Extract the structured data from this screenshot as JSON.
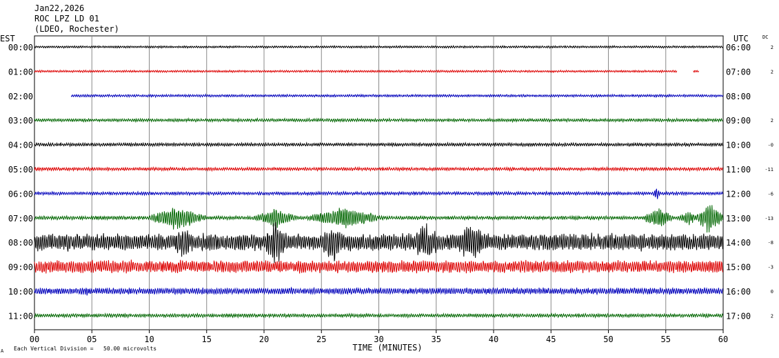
{
  "header": {
    "date": "Jan22,2026",
    "station": "ROC LPZ LD 01",
    "network": "(LDEO, Rochester)"
  },
  "chart_data": {
    "type": "line",
    "title": "Jan22,2026",
    "left_zone_label": "EST",
    "right_zone_label": "UTC",
    "dc_label": "DC",
    "xlabel": "TIME (MINUTES)",
    "xlim": [
      0,
      60
    ],
    "x_ticks": [
      "00",
      "05",
      "10",
      "15",
      "20",
      "25",
      "30",
      "35",
      "40",
      "45",
      "50",
      "55",
      "60"
    ],
    "scale_note": "Each Vertical Division =   50.00 microvolts",
    "grid": true,
    "trace_colors": [
      "#000000",
      "#dd0000",
      "#0000bb",
      "#006600"
    ],
    "rows": [
      {
        "est": "00:00",
        "utc": "06:00",
        "dc": "2",
        "color": "#000000",
        "amplitude": 1.5,
        "start_min": 0,
        "gaps": [],
        "events": []
      },
      {
        "est": "01:00",
        "utc": "07:00",
        "dc": "2",
        "color": "#dd0000",
        "amplitude": 1.5,
        "start_min": 0,
        "gaps": [
          [
            56.0,
            57.4
          ],
          [
            57.9,
            59.1
          ],
          [
            58.1,
            60
          ]
        ],
        "events": []
      },
      {
        "est": "02:00",
        "utc": "08:00",
        "dc": "",
        "color": "#0000bb",
        "amplitude": 1.8,
        "start_min": 3.2,
        "gaps": [],
        "events": []
      },
      {
        "est": "03:00",
        "utc": "09:00",
        "dc": "2",
        "color": "#006600",
        "amplitude": 2.2,
        "start_min": 0,
        "gaps": [],
        "events": []
      },
      {
        "est": "04:00",
        "utc": "10:00",
        "dc": "-0",
        "color": "#000000",
        "amplitude": 2.3,
        "start_min": 0,
        "gaps": [],
        "events": []
      },
      {
        "est": "05:00",
        "utc": "11:00",
        "dc": "-11",
        "color": "#dd0000",
        "amplitude": 2.3,
        "start_min": 0,
        "gaps": [],
        "events": []
      },
      {
        "est": "06:00",
        "utc": "12:00",
        "dc": "-6",
        "color": "#0000bb",
        "amplitude": 2.3,
        "start_min": 0,
        "gaps": [],
        "events": [
          [
            54.2,
            0.4,
            10
          ]
        ]
      },
      {
        "est": "07:00",
        "utc": "13:00",
        "dc": "-13",
        "color": "#006600",
        "amplitude": 2.5,
        "start_min": 0,
        "gaps": [],
        "events": [
          [
            12.5,
            3,
            18
          ],
          [
            21,
            2.5,
            14
          ],
          [
            27,
            4,
            16
          ],
          [
            54.3,
            1.5,
            18
          ],
          [
            57,
            1.2,
            10
          ],
          [
            58.8,
            1.5,
            22
          ]
        ]
      },
      {
        "est": "08:00",
        "utc": "14:00",
        "dc": "-8",
        "color": "#000000",
        "amplitude": 12,
        "start_min": 0,
        "gaps": [],
        "events": [
          [
            13,
            1.5,
            26
          ],
          [
            21,
            1.5,
            34
          ],
          [
            26,
            1.5,
            30
          ],
          [
            34,
            2,
            28
          ],
          [
            38,
            2,
            28
          ]
        ]
      },
      {
        "est": "09:00",
        "utc": "15:00",
        "dc": "-3",
        "color": "#dd0000",
        "amplitude": 9,
        "start_min": 0,
        "gaps": [],
        "events": [
          [
            2.5,
            1,
            6
          ],
          [
            12.8,
            1,
            10
          ],
          [
            23,
            1,
            10
          ]
        ]
      },
      {
        "est": "10:00",
        "utc": "16:00",
        "dc": "0",
        "color": "#0000bb",
        "amplitude": 4.5,
        "start_min": 0,
        "gaps": [],
        "events": [
          [
            4.5,
            0.5,
            8
          ],
          [
            21.5,
            1,
            6
          ]
        ]
      },
      {
        "est": "11:00",
        "utc": "17:00",
        "dc": "2",
        "color": "#006600",
        "amplitude": 2.5,
        "start_min": 0,
        "gaps": [],
        "events": []
      }
    ]
  }
}
